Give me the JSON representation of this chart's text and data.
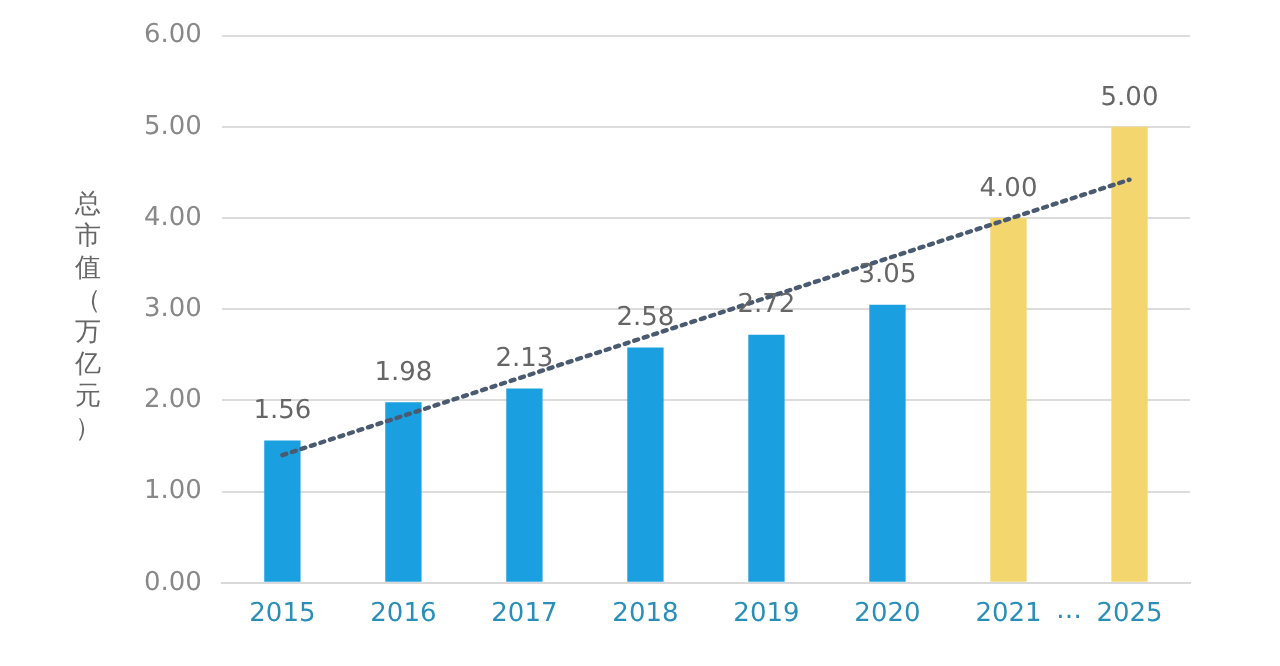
{
  "chart_data": {
    "type": "bar",
    "ylabel": "总市值（万亿元）",
    "categories": [
      "2015",
      "2016",
      "2017",
      "2018",
      "2019",
      "2020",
      "2021",
      "2025"
    ],
    "series": [
      {
        "colors": [
          "#1a9fe0",
          "#1a9fe0",
          "#1a9fe0",
          "#1a9fe0",
          "#1a9fe0",
          "#1a9fe0",
          "#f3d66e",
          "#f3d66e"
        ],
        "values": [
          1.56,
          1.98,
          2.13,
          2.58,
          2.72,
          3.05,
          4.0,
          5.0
        ],
        "value_labels": [
          "1.56",
          "1.98",
          "2.13",
          "2.58",
          "2.72",
          "3.05",
          "4.00",
          "5.00"
        ]
      },
      {
        "type": "line",
        "color": "#4a5a70",
        "values": [
          1.4,
          null,
          null,
          null,
          null,
          null,
          null,
          4.42
        ],
        "line_style": "dotted",
        "marker": "none"
      }
    ],
    "ylim": [
      0,
      6
    ],
    "yticks": [
      {
        "value": 0,
        "label": "0.00"
      },
      {
        "value": 1,
        "label": "1.00"
      },
      {
        "value": 2,
        "label": "2.00"
      },
      {
        "value": 3,
        "label": "3.00"
      },
      {
        "value": 4,
        "label": "4.00"
      },
      {
        "value": 5,
        "label": "5.00"
      },
      {
        "value": 6,
        "label": "6.00"
      }
    ],
    "grid": "y",
    "legend": false,
    "annotations": [
      "…"
    ]
  }
}
